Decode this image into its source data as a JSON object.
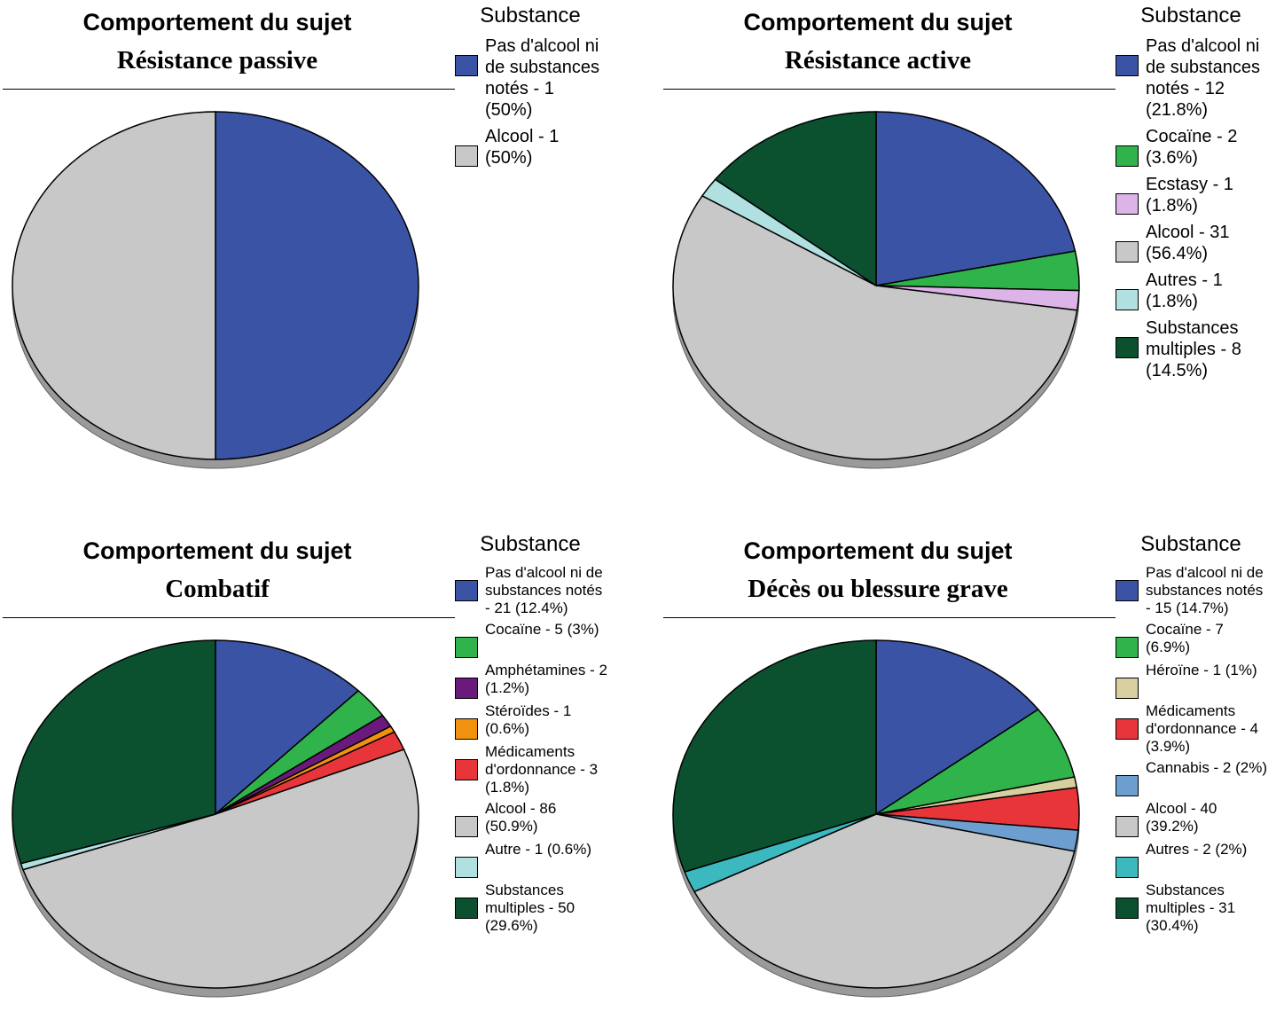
{
  "chart_data": [
    {
      "type": "pie",
      "title": "Comportement du sujet",
      "subtitle": "Résistance passive",
      "legend_title": "Substance",
      "categories": [
        "Pas d'alcool ni de substances notés - 1 (50%)",
        "Alcool - 1 (50%)"
      ],
      "values": [
        1,
        1
      ],
      "colors": [
        "#3a53a4",
        "#c8c8c8"
      ]
    },
    {
      "type": "pie",
      "title": "Comportement du sujet",
      "subtitle": "Résistance active",
      "legend_title": "Substance",
      "categories": [
        "Pas d'alcool ni de substances notés - 12 (21.8%)",
        "Cocaïne - 2 (3.6%)",
        "Ecstasy - 1 (1.8%)",
        "Alcool - 31 (56.4%)",
        "Autres - 1 (1.8%)",
        "Substances multiples - 8 (14.5%)"
      ],
      "values": [
        12,
        2,
        1,
        31,
        1,
        8
      ],
      "colors": [
        "#3a53a4",
        "#2fb34a",
        "#dcb4e8",
        "#c8c8c8",
        "#b0e0e0",
        "#0b5130"
      ]
    },
    {
      "type": "pie",
      "title": "Comportement du sujet",
      "subtitle": "Combatif",
      "legend_title": "Substance",
      "categories": [
        "Pas d'alcool ni de substances notés - 21 (12.4%)",
        "Cocaïne - 5 (3%)",
        "Amphétamines - 2 (1.2%)",
        "Stéroïdes - 1 (0.6%)",
        "Médicaments d'ordonnance - 3 (1.8%)",
        "Alcool - 86 (50.9%)",
        "Autre - 1 (0.6%)",
        "Substances multiples - 50 (29.6%)"
      ],
      "values": [
        21,
        5,
        2,
        1,
        3,
        86,
        1,
        50
      ],
      "colors": [
        "#3a53a4",
        "#2fb34a",
        "#6a1a7a",
        "#f0920f",
        "#e8353a",
        "#c8c8c8",
        "#b0e0e0",
        "#0b5130"
      ]
    },
    {
      "type": "pie",
      "title": "Comportement du sujet",
      "subtitle": "Décès ou blessure grave",
      "legend_title": "Substance",
      "categories": [
        "Pas d'alcool ni de substances notés - 15 (14.7%)",
        "Cocaïne - 7 (6.9%)",
        "Héroïne - 1 (1%)",
        "Médicaments d'ordonnance - 4 (3.9%)",
        "Cannabis - 2 (2%)",
        "Alcool - 40 (39.2%)",
        "Autres - 2 (2%)",
        "Substances multiples - 31 (30.4%)"
      ],
      "values": [
        15,
        7,
        1,
        4,
        2,
        40,
        2,
        31
      ],
      "colors": [
        "#3a53a4",
        "#2fb34a",
        "#d8cfa0",
        "#e8353a",
        "#6c9fd0",
        "#c8c8c8",
        "#3cb8bf",
        "#0b5130"
      ]
    }
  ]
}
